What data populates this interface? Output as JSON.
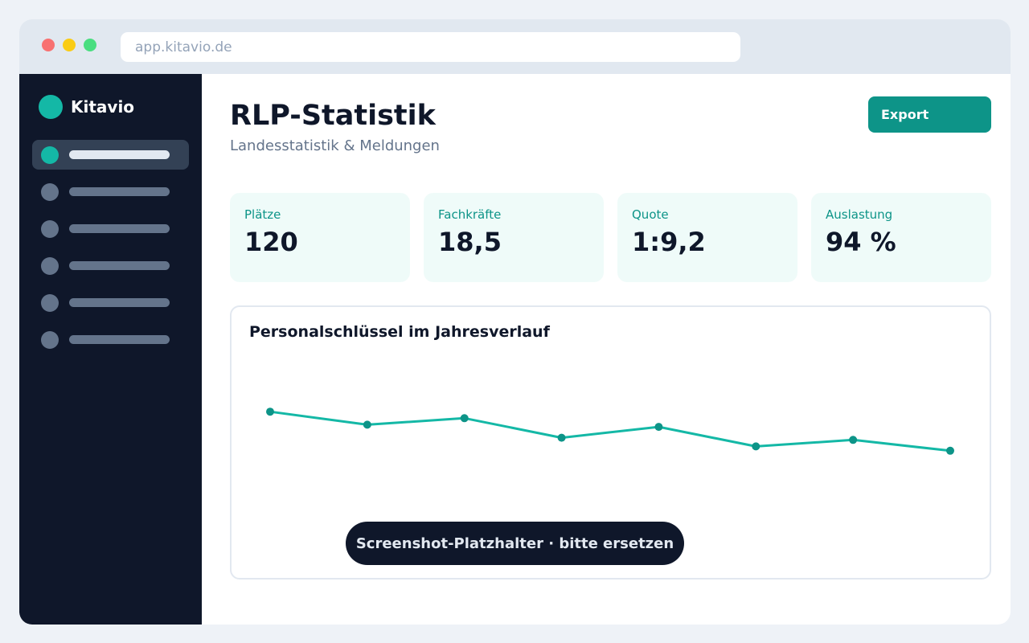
{
  "browser": {
    "url": "app.kitavio.de"
  },
  "sidebar": {
    "brand": "Kitavio",
    "brand_color": "#14b8a6",
    "items": [
      {
        "active": true
      },
      {
        "active": false
      },
      {
        "active": false
      },
      {
        "active": false
      },
      {
        "active": false
      },
      {
        "active": false
      }
    ]
  },
  "header": {
    "title": "RLP-Statistik",
    "subtitle": "Landesstatistik & Meldungen",
    "export_label": "Export"
  },
  "kpis": [
    {
      "label": "Plätze",
      "value": "120"
    },
    {
      "label": "Fachkräfte",
      "value": "18,5"
    },
    {
      "label": "Quote",
      "value": "1:9,2"
    },
    {
      "label": "Auslastung",
      "value": "94 %"
    }
  ],
  "chart": {
    "title": "Personalschlüssel im Jahresverlauf",
    "placeholder": "Screenshot-Platzhalter · bitte ersetzen"
  },
  "chart_data": {
    "type": "line",
    "title": "Personalschlüssel im Jahresverlauf",
    "xlabel": "",
    "ylabel": "",
    "grid": false,
    "ylim": [
      0,
      10
    ],
    "series": [
      {
        "values": [
          7.4,
          6.8,
          7.1,
          6.2,
          6.7,
          5.8,
          6.1,
          5.6
        ],
        "color": "#14b8a6",
        "marker_color": "#0d9488"
      }
    ]
  },
  "colors": {
    "accent": "#0d9488",
    "sidebar_bg": "#0f172a",
    "kpi_bg": "#effbf9"
  }
}
